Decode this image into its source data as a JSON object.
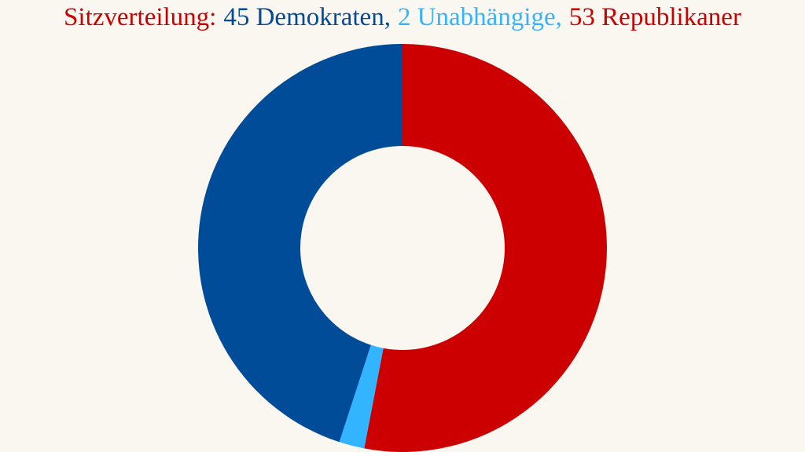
{
  "chart_data": {
    "type": "donut",
    "title": [
      "Sitzverteilung:",
      "45 Demokraten,",
      "2 Unabhängige,",
      "53 Republikaner"
    ],
    "title_colors": [
      "#cc0000",
      "#004c99",
      "#33b4ff",
      "#cc0000"
    ],
    "values": [
      53,
      2,
      45
    ],
    "colors": [
      "#cc0000",
      "#33b4ff",
      "#004c99"
    ]
  }
}
